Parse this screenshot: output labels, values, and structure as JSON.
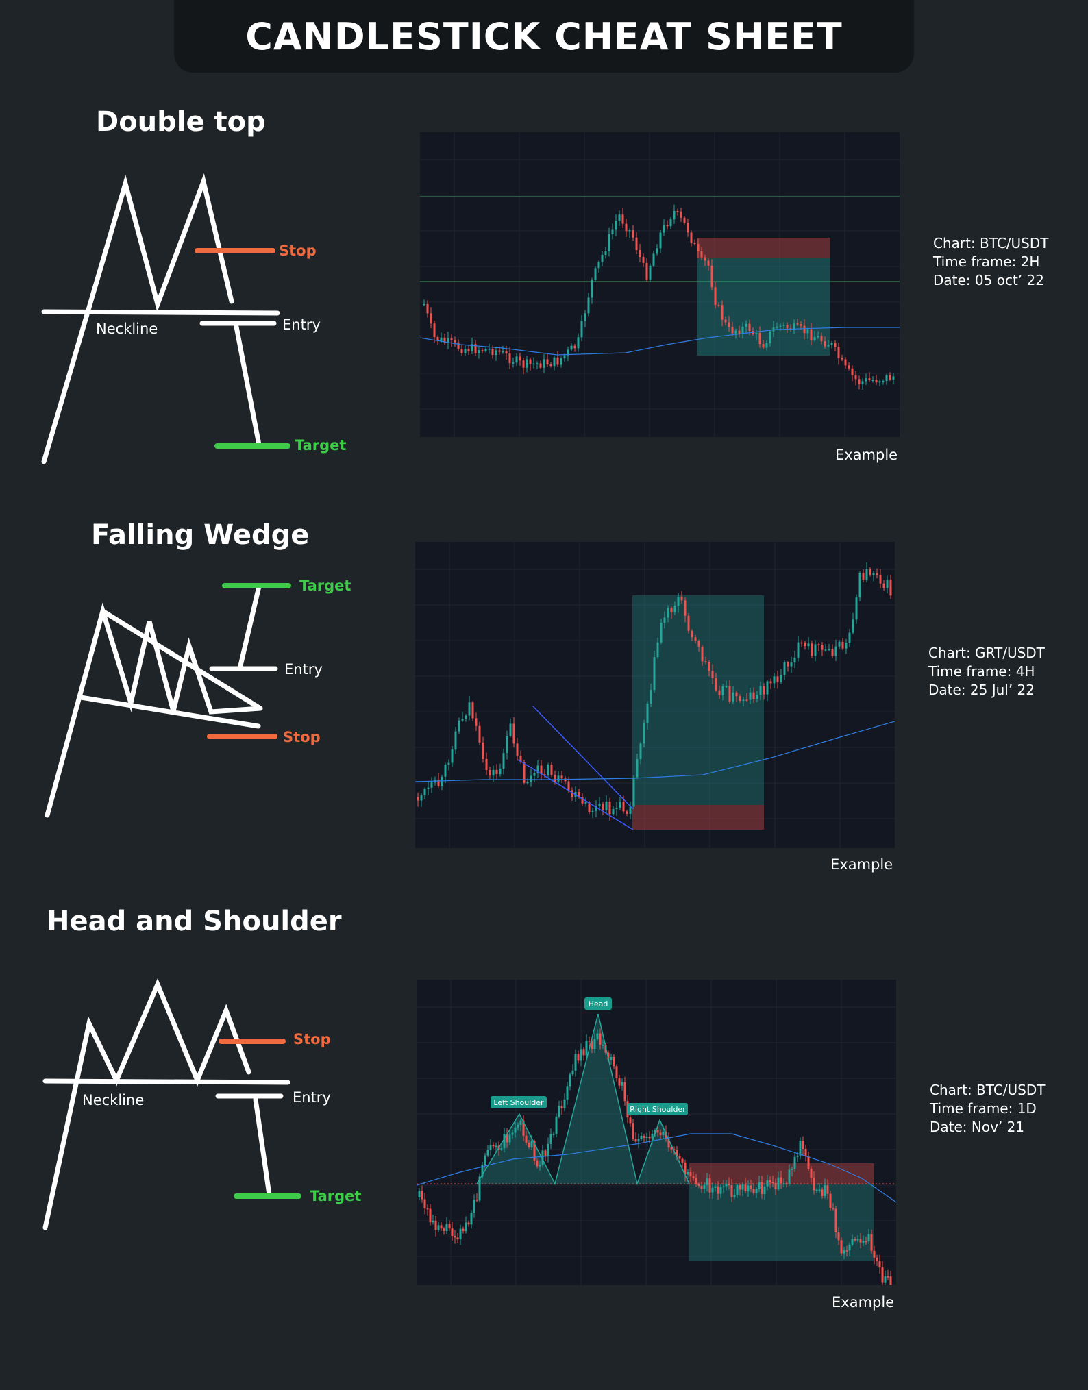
{
  "header": {
    "title": "CANDLESTICK CHEAT SHEET"
  },
  "colors": {
    "background": "#1e2427",
    "banner": "#131719",
    "stop": "#f06a3f",
    "target": "#3ecb4a",
    "chart_bg": "#131722",
    "bull": "#26a69a",
    "bear": "#ef5350",
    "ma_line": "#2f7de1"
  },
  "sections": [
    {
      "title": "Double top",
      "labels": {
        "stop": "Stop",
        "entry": "Entry",
        "neckline": "Neckline",
        "target": "Target"
      },
      "example_label": "Example",
      "info": {
        "chart": "Chart: BTC/USDT",
        "timeframe": "Time frame: 2H",
        "date": "Date: 05 oct’ 22"
      }
    },
    {
      "title": "Falling Wedge",
      "labels": {
        "target": "Target",
        "entry": "Entry",
        "stop": "Stop"
      },
      "example_label": "Example",
      "info": {
        "chart": "Chart: GRT/USDT",
        "timeframe": "Time frame: 4H",
        "date": "Date: 25 Jul’ 22"
      }
    },
    {
      "title": "Head and Shoulder",
      "labels": {
        "stop": "Stop",
        "entry": "Entry",
        "neckline": "Neckline",
        "target": "Target"
      },
      "example_label": "Example",
      "info": {
        "chart": "Chart: BTC/USDT",
        "timeframe": "Time frame: 1D",
        "date": "Date: Nov’ 21"
      },
      "chart_tags": {
        "head": "Head",
        "left_shoulder": "Left Shoulder",
        "right_shoulder": "Right Shoulder"
      }
    }
  ]
}
